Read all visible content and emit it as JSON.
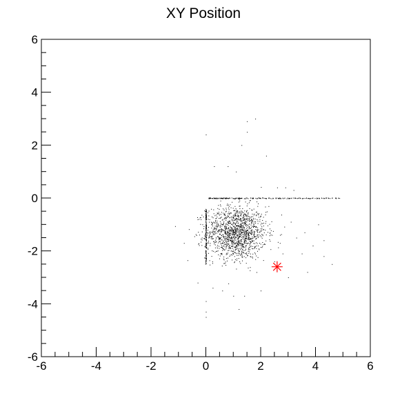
{
  "chart_data": {
    "type": "scatter",
    "title": "XY Position",
    "xlabel": "",
    "ylabel": "",
    "xlim": [
      -6,
      6
    ],
    "ylim": [
      -6,
      6
    ],
    "grid": false,
    "x_ticks": [
      "-6",
      "-4",
      "-2",
      "0",
      "2",
      "4",
      "6"
    ],
    "y_ticks": [
      "6",
      "4",
      "2",
      "0",
      "-2",
      "-4",
      "-6"
    ],
    "colors": {
      "points": "#000000",
      "marker": "#ff0000",
      "frame": "#000000"
    },
    "cloud": {
      "center": [
        1.1,
        -1.3
      ],
      "spread": [
        0.55,
        0.5
      ],
      "count": 1400
    },
    "vertical_streak": {
      "x": 0.0,
      "y_range": [
        -2.5,
        -0.4
      ]
    },
    "horizontal_streak": {
      "y": 0.0,
      "x_range": [
        0.1,
        4.9
      ]
    },
    "outliers": [
      [
        1.8,
        3.0
      ],
      [
        1.5,
        2.9
      ],
      [
        1.5,
        2.5
      ],
      [
        1.3,
        2.0
      ],
      [
        0.0,
        2.4
      ],
      [
        2.2,
        1.6
      ],
      [
        0.8,
        1.2
      ],
      [
        1.1,
        1.0
      ],
      [
        0.3,
        1.2
      ],
      [
        2.6,
        0.4
      ],
      [
        2.9,
        0.4
      ],
      [
        3.2,
        0.3
      ],
      [
        -0.8,
        -1.7
      ],
      [
        -0.3,
        -3.2
      ],
      [
        3.1,
        -0.9
      ],
      [
        3.3,
        -1.5
      ],
      [
        3.5,
        -2.1
      ],
      [
        3.9,
        -1.8
      ],
      [
        4.1,
        -1.0
      ],
      [
        4.3,
        -1.6
      ],
      [
        4.6,
        -2.5
      ],
      [
        4.3,
        -2.2
      ],
      [
        3.7,
        -2.8
      ],
      [
        3.0,
        -3.0
      ],
      [
        2.8,
        -2.1
      ],
      [
        1.0,
        -3.7
      ],
      [
        1.4,
        -3.7
      ],
      [
        1.2,
        -4.2
      ],
      [
        0.6,
        -3.5
      ],
      [
        2.0,
        -3.5
      ],
      [
        0.0,
        -4.5
      ],
      [
        0.0,
        -4.3
      ],
      [
        2.5,
        -2.4
      ],
      [
        3.6,
        -1.3
      ],
      [
        2.7,
        -1.7
      ],
      [
        0.0,
        -3.9
      ]
    ],
    "marker_point": {
      "x": 2.6,
      "y": -2.6,
      "shape": "asterisk"
    }
  }
}
